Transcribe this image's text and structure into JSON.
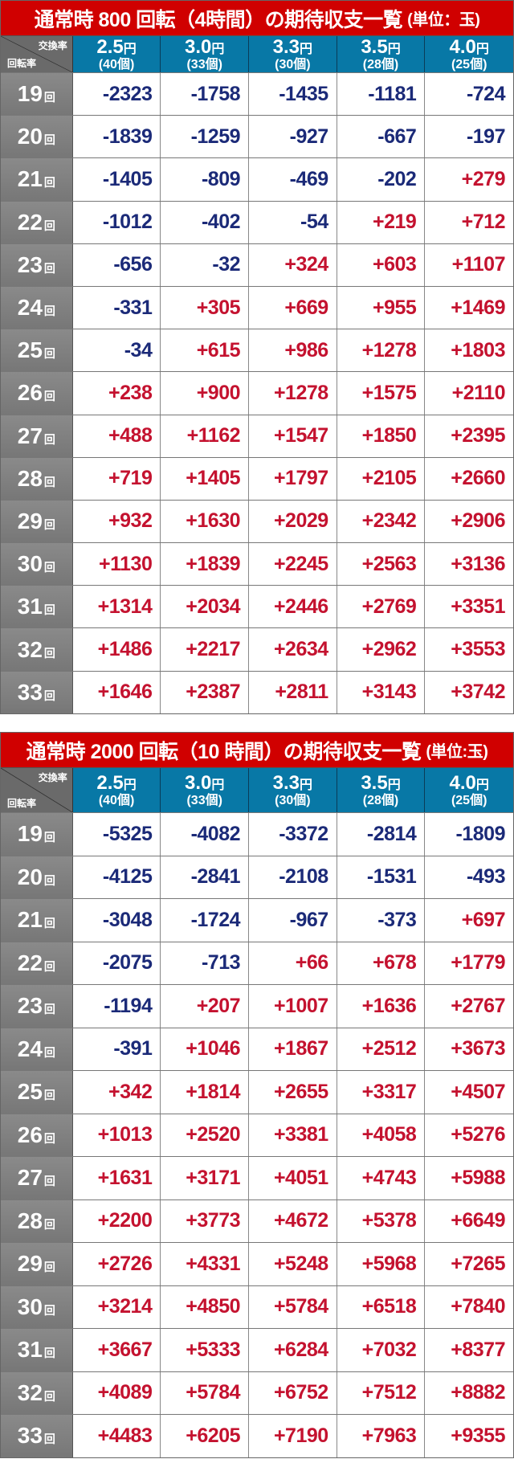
{
  "corner": {
    "top": "交換率",
    "bottom": "回転率"
  },
  "columns": [
    {
      "rate": "2.5",
      "unit": "円",
      "balls": "(40個)"
    },
    {
      "rate": "3.0",
      "unit": "円",
      "balls": "(33個)"
    },
    {
      "rate": "3.3",
      "unit": "円",
      "balls": "(30個)"
    },
    {
      "rate": "3.5",
      "unit": "円",
      "balls": "(28個)"
    },
    {
      "rate": "4.0",
      "unit": "円",
      "balls": "(25個)"
    }
  ],
  "row_unit": "回",
  "colors": {
    "title_bg": "#d00000",
    "header_bg": "#0878a6",
    "negative": "#1b2a78",
    "positive": "#c4122f"
  },
  "tables": [
    {
      "title": "通常時 800 回転（4時間）の期待収支一覧",
      "unit_note": "(単位：玉)",
      "rows": [
        {
          "label": "19",
          "values": [
            "-2323",
            "-1758",
            "-1435",
            "-1181",
            "-724"
          ]
        },
        {
          "label": "20",
          "values": [
            "-1839",
            "-1259",
            "-927",
            "-667",
            "-197"
          ]
        },
        {
          "label": "21",
          "values": [
            "-1405",
            "-809",
            "-469",
            "-202",
            "+279"
          ]
        },
        {
          "label": "22",
          "values": [
            "-1012",
            "-402",
            "-54",
            "+219",
            "+712"
          ]
        },
        {
          "label": "23",
          "values": [
            "-656",
            "-32",
            "+324",
            "+603",
            "+1107"
          ]
        },
        {
          "label": "24",
          "values": [
            "-331",
            "+305",
            "+669",
            "+955",
            "+1469"
          ]
        },
        {
          "label": "25",
          "values": [
            "-34",
            "+615",
            "+986",
            "+1278",
            "+1803"
          ]
        },
        {
          "label": "26",
          "values": [
            "+238",
            "+900",
            "+1278",
            "+1575",
            "+2110"
          ]
        },
        {
          "label": "27",
          "values": [
            "+488",
            "+1162",
            "+1547",
            "+1850",
            "+2395"
          ]
        },
        {
          "label": "28",
          "values": [
            "+719",
            "+1405",
            "+1797",
            "+2105",
            "+2660"
          ]
        },
        {
          "label": "29",
          "values": [
            "+932",
            "+1630",
            "+2029",
            "+2342",
            "+2906"
          ]
        },
        {
          "label": "30",
          "values": [
            "+1130",
            "+1839",
            "+2245",
            "+2563",
            "+3136"
          ]
        },
        {
          "label": "31",
          "values": [
            "+1314",
            "+2034",
            "+2446",
            "+2769",
            "+3351"
          ]
        },
        {
          "label": "32",
          "values": [
            "+1486",
            "+2217",
            "+2634",
            "+2962",
            "+3553"
          ]
        },
        {
          "label": "33",
          "values": [
            "+1646",
            "+2387",
            "+2811",
            "+3143",
            "+3742"
          ]
        }
      ]
    },
    {
      "title": "通常時 2000 回転（10 時間）の期待収支一覧",
      "unit_note": "(単位:玉)",
      "rows": [
        {
          "label": "19",
          "values": [
            "-5325",
            "-4082",
            "-3372",
            "-2814",
            "-1809"
          ]
        },
        {
          "label": "20",
          "values": [
            "-4125",
            "-2841",
            "-2108",
            "-1531",
            "-493"
          ]
        },
        {
          "label": "21",
          "values": [
            "-3048",
            "-1724",
            "-967",
            "-373",
            "+697"
          ]
        },
        {
          "label": "22",
          "values": [
            "-2075",
            "-713",
            "+66",
            "+678",
            "+1779"
          ]
        },
        {
          "label": "23",
          "values": [
            "-1194",
            "+207",
            "+1007",
            "+1636",
            "+2767"
          ]
        },
        {
          "label": "24",
          "values": [
            "-391",
            "+1046",
            "+1867",
            "+2512",
            "+3673"
          ]
        },
        {
          "label": "25",
          "values": [
            "+342",
            "+1814",
            "+2655",
            "+3317",
            "+4507"
          ]
        },
        {
          "label": "26",
          "values": [
            "+1013",
            "+2520",
            "+3381",
            "+4058",
            "+5276"
          ]
        },
        {
          "label": "27",
          "values": [
            "+1631",
            "+3171",
            "+4051",
            "+4743",
            "+5988"
          ]
        },
        {
          "label": "28",
          "values": [
            "+2200",
            "+3773",
            "+4672",
            "+5378",
            "+6649"
          ]
        },
        {
          "label": "29",
          "values": [
            "+2726",
            "+4331",
            "+5248",
            "+5968",
            "+7265"
          ]
        },
        {
          "label": "30",
          "values": [
            "+3214",
            "+4850",
            "+5784",
            "+6518",
            "+7840"
          ]
        },
        {
          "label": "31",
          "values": [
            "+3667",
            "+5333",
            "+6284",
            "+7032",
            "+8377"
          ]
        },
        {
          "label": "32",
          "values": [
            "+4089",
            "+5784",
            "+6752",
            "+7512",
            "+8882"
          ]
        },
        {
          "label": "33",
          "values": [
            "+4483",
            "+6205",
            "+7190",
            "+7963",
            "+9355"
          ]
        }
      ]
    }
  ]
}
